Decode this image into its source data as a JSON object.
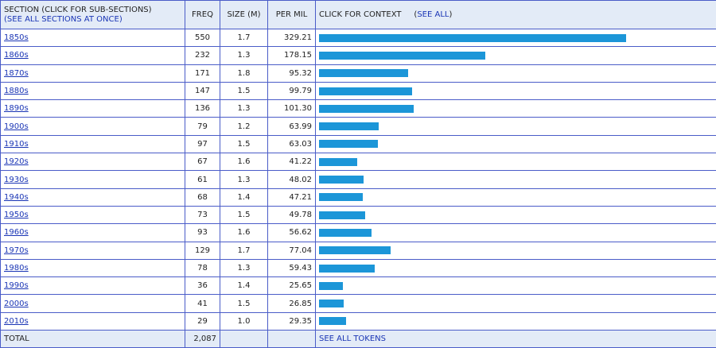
{
  "header": {
    "section_label": "SECTION (CLICK FOR SUB-SECTIONS)",
    "see_all_sections": "(SEE ALL SECTIONS AT ONCE)",
    "freq": "FREQ",
    "size": "SIZE (M)",
    "per_mil": "PER MIL",
    "context": "CLICK FOR CONTEXT",
    "see_all": "SEE ALL"
  },
  "rows": [
    {
      "section": "1850s",
      "freq": "550",
      "size": "1.7",
      "per_mil": "329.21"
    },
    {
      "section": "1860s",
      "freq": "232",
      "size": "1.3",
      "per_mil": "178.15"
    },
    {
      "section": "1870s",
      "freq": "171",
      "size": "1.8",
      "per_mil": "95.32"
    },
    {
      "section": "1880s",
      "freq": "147",
      "size": "1.5",
      "per_mil": "99.79"
    },
    {
      "section": "1890s",
      "freq": "136",
      "size": "1.3",
      "per_mil": "101.30"
    },
    {
      "section": "1900s",
      "freq": "79",
      "size": "1.2",
      "per_mil": "63.99"
    },
    {
      "section": "1910s",
      "freq": "97",
      "size": "1.5",
      "per_mil": "63.03"
    },
    {
      "section": "1920s",
      "freq": "67",
      "size": "1.6",
      "per_mil": "41.22"
    },
    {
      "section": "1930s",
      "freq": "61",
      "size": "1.3",
      "per_mil": "48.02"
    },
    {
      "section": "1940s",
      "freq": "68",
      "size": "1.4",
      "per_mil": "47.21"
    },
    {
      "section": "1950s",
      "freq": "73",
      "size": "1.5",
      "per_mil": "49.78"
    },
    {
      "section": "1960s",
      "freq": "93",
      "size": "1.6",
      "per_mil": "56.62"
    },
    {
      "section": "1970s",
      "freq": "129",
      "size": "1.7",
      "per_mil": "77.04"
    },
    {
      "section": "1980s",
      "freq": "78",
      "size": "1.3",
      "per_mil": "59.43"
    },
    {
      "section": "1990s",
      "freq": "36",
      "size": "1.4",
      "per_mil": "25.65"
    },
    {
      "section": "2000s",
      "freq": "41",
      "size": "1.5",
      "per_mil": "26.85"
    },
    {
      "section": "2010s",
      "freq": "29",
      "size": "1.0",
      "per_mil": "29.35"
    }
  ],
  "footer": {
    "total_label": "TOTAL",
    "total_freq": "2,087",
    "see_all_tokens": "SEE ALL TOKENS"
  },
  "colors": {
    "bar": "#1c96d8",
    "header_bg": "#e3ebf7",
    "link": "#1a35b5",
    "border": "#4a5cc8"
  }
}
